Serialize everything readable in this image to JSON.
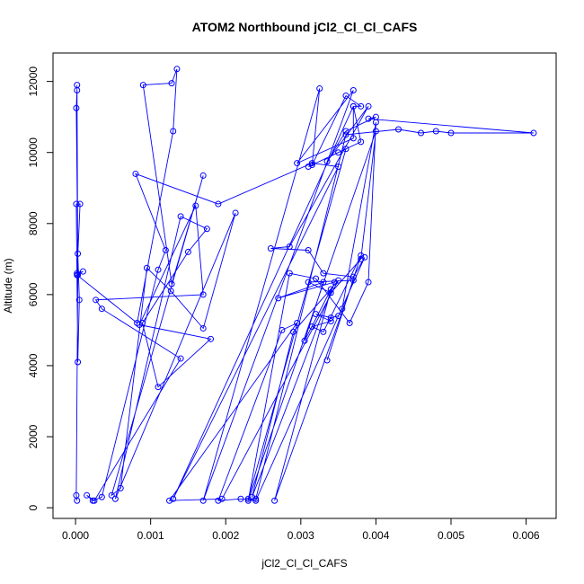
{
  "chart_data": {
    "type": "line",
    "title": "ATOM2 Northbound jCl2_Cl_Cl_CAFS",
    "xlabel": "jCl2_Cl_Cl_CAFS",
    "ylabel": "Altitude (m)",
    "xlim": [
      -0.0003,
      0.0064
    ],
    "ylim": [
      -300,
      12800
    ],
    "x_ticks": [
      0.0,
      0.001,
      0.002,
      0.003,
      0.004,
      0.005,
      0.006
    ],
    "x_tick_labels": [
      "0.000",
      "0.001",
      "0.002",
      "0.003",
      "0.004",
      "0.005",
      "0.006"
    ],
    "y_ticks": [
      0,
      2000,
      4000,
      6000,
      8000,
      10000,
      12000
    ],
    "y_tick_labels": [
      "0",
      "2000",
      "4000",
      "6000",
      "8000",
      "10000",
      "12000"
    ],
    "grid": false,
    "series": [
      {
        "color": "#0000ff",
        "marker": "open-circle",
        "x": [
          2e-05,
          1e-05,
          3e-05,
          2e-05,
          2e-05,
          1e-05,
          3e-05,
          5e-05,
          3e-05,
          1e-05,
          6e-05,
          2e-05,
          0.0001,
          2e-05,
          0.00082,
          0.0013,
          0.00135,
          0.00128,
          0.0009,
          0.00128,
          0.0017,
          0.00048,
          0.0006,
          0.00095,
          0.00127,
          0.0017,
          0.00213,
          0.00053,
          0.0014,
          0.00175,
          0.0015,
          0.00089,
          0.0011,
          0.0018,
          0.00085,
          0.0016,
          0.0017,
          0.00027,
          0.00035,
          0.0014,
          0.00025,
          0.00015,
          0.00023,
          0.00035,
          0.0011,
          0.0012,
          0.0008,
          0.0019,
          0.00315,
          0.0035,
          0.0013,
          0.0037,
          0.0037,
          0.00295,
          0.0037,
          0.0017,
          0.00325,
          0.00315,
          0.0036,
          0.0038,
          0.0037,
          0.0038,
          0.0031,
          0.0035,
          0.0036,
          0.0023,
          0.0024,
          0.0036,
          0.0043,
          0.0046,
          0.0048,
          0.005,
          0.0061,
          0.0039,
          0.004,
          0.0036,
          0.00335,
          0.0039,
          0.00285,
          0.0026,
          0.0031,
          0.0033,
          0.0037,
          0.00385,
          0.0024,
          0.0022,
          0.0019,
          0.00275,
          0.00295,
          0.00125,
          0.00195,
          0.0035,
          0.0029,
          0.00235,
          0.00345,
          0.0027,
          0.0033,
          0.00305,
          0.0034,
          0.00265,
          0.0037,
          0.0031,
          0.0034,
          0.0038,
          0.004,
          0.0023,
          0.00285,
          0.0032,
          0.00365,
          0.0039,
          0.004,
          0.00355,
          0.0035,
          0.0034,
          0.0032,
          0.0034,
          0.00315,
          0.0033,
          0.0038,
          0.00335
        ],
        "y": [
          200,
          350,
          6550,
          11900,
          11750,
          11250,
          7150,
          5850,
          4100,
          8550,
          8550,
          6600,
          6650,
          6550,
          5200,
          10600,
          12350,
          11950,
          11900,
          6300,
          9350,
          350,
          550,
          6750,
          6100,
          5050,
          8300,
          250,
          8200,
          7850,
          7200,
          5200,
          3400,
          4750,
          5150,
          8500,
          6000,
          5850,
          5600,
          4200,
          200,
          350,
          200,
          300,
          6700,
          7250,
          9400,
          8550,
          9700,
          9600,
          250,
          11300,
          10400,
          9700,
          11750,
          200,
          11800,
          9650,
          11600,
          11300,
          11300,
          10300,
          9600,
          10000,
          10100,
          250,
          250,
          10500,
          10650,
          10550,
          10600,
          10550,
          10550,
          10950,
          11000,
          10600,
          9750,
          11300,
          7350,
          7300,
          7250,
          6600,
          6500,
          7050,
          200,
          250,
          200,
          5000,
          5200,
          200,
          250,
          6400,
          4950,
          300,
          6350,
          5900,
          6350,
          4700,
          6150,
          200,
          6400,
          6350,
          6050,
          7000,
          10600,
          200,
          6600,
          6450,
          5200,
          6350,
          10850,
          5600,
          5400,
          5350,
          5450,
          5250,
          5100,
          4950,
          7100,
          4150
        ]
      }
    ]
  }
}
